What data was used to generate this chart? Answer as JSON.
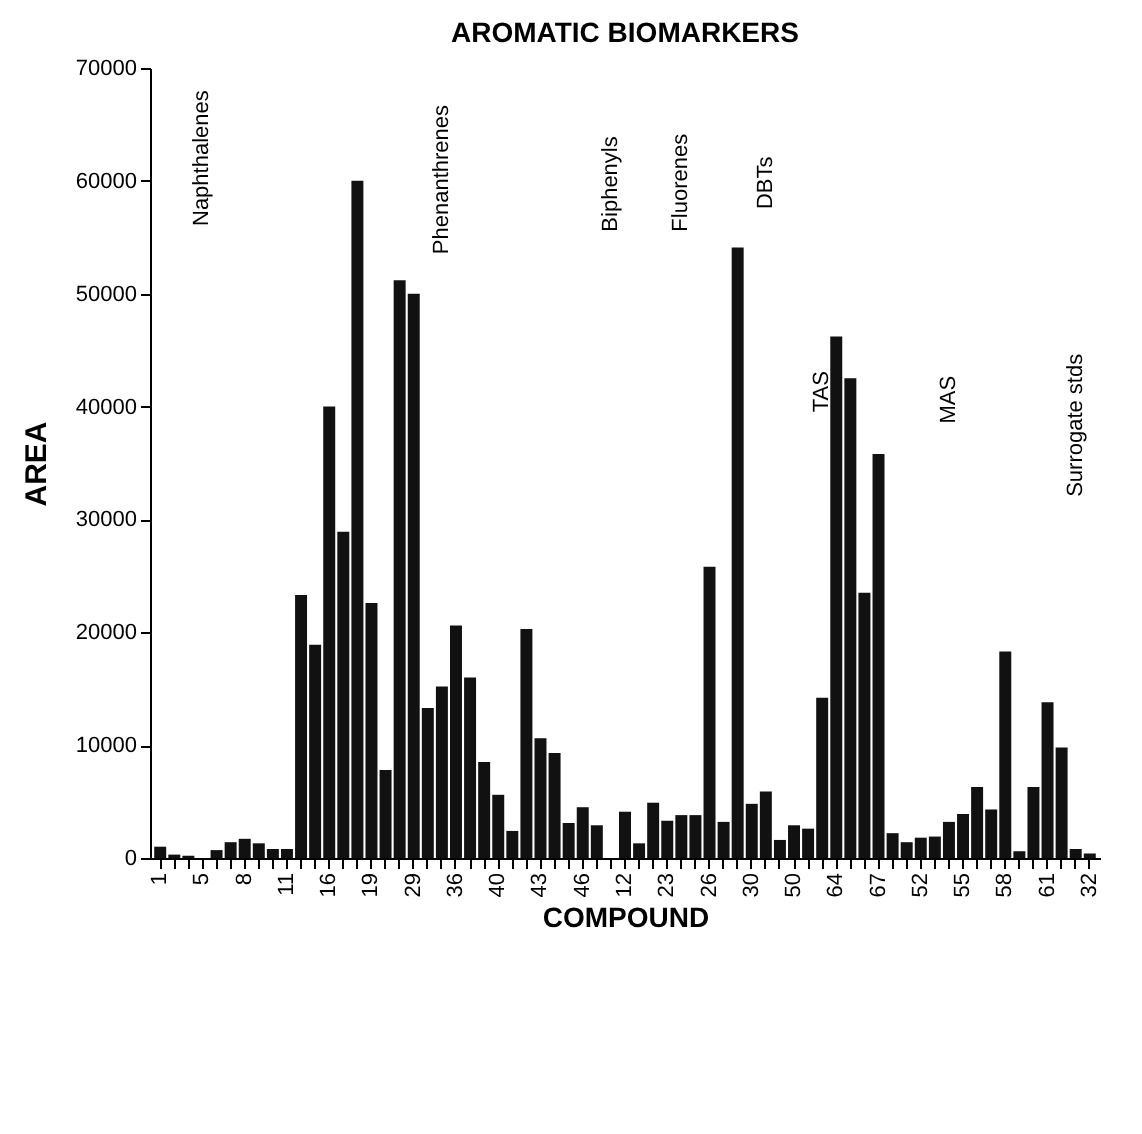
{
  "chart_data": {
    "type": "bar",
    "title": "AROMATIC BIOMARKERS",
    "xlabel": "COMPOUND",
    "ylabel": "AREA",
    "categories": [
      "1",
      null,
      null,
      "5",
      null,
      null,
      "8",
      null,
      null,
      "11",
      null,
      null,
      "16",
      null,
      null,
      "19",
      null,
      null,
      "29",
      null,
      null,
      "36",
      null,
      null,
      "40",
      null,
      null,
      "43",
      null,
      null,
      "46",
      null,
      null,
      "12",
      null,
      null,
      "23",
      null,
      null,
      "26",
      null,
      null,
      "30",
      null,
      null,
      "50",
      null,
      null,
      "64",
      null,
      null,
      "67",
      null,
      null,
      "52",
      null,
      null,
      "55",
      null,
      null,
      "58",
      null,
      null,
      "61",
      null,
      null,
      "32"
    ],
    "values": [
      1000,
      300,
      200,
      0,
      700,
      1400,
      1700,
      1300,
      800,
      800,
      23300,
      18900,
      40000,
      28900,
      60000,
      22600,
      7800,
      51200,
      50000,
      13300,
      15200,
      20600,
      16000,
      8500,
      5600,
      2400,
      20300,
      10600,
      9300,
      3100,
      4500,
      2900,
      0,
      4100,
      1300,
      4900,
      3300,
      3800,
      3800,
      25800,
      3200,
      54100,
      4800,
      5900,
      1600,
      2900,
      2600,
      14200,
      46200,
      42500,
      23500,
      35800,
      2200,
      1400,
      1800,
      1900,
      3200,
      3900,
      6300,
      4300,
      18300,
      600,
      6300,
      13800,
      9800,
      800,
      400
    ],
    "color": "#111111",
    "ylim": [
      0,
      70000
    ],
    "yticks": [
      0,
      10000,
      20000,
      30000,
      40000,
      50000,
      60000,
      70000
    ],
    "grid": false,
    "annotations": [
      "Naphthalenes",
      "Phenanthrenes",
      "Biphenyls",
      "Fluorenes",
      "DBTs",
      "TAS",
      "MAS",
      "Surrogate stds"
    ]
  }
}
